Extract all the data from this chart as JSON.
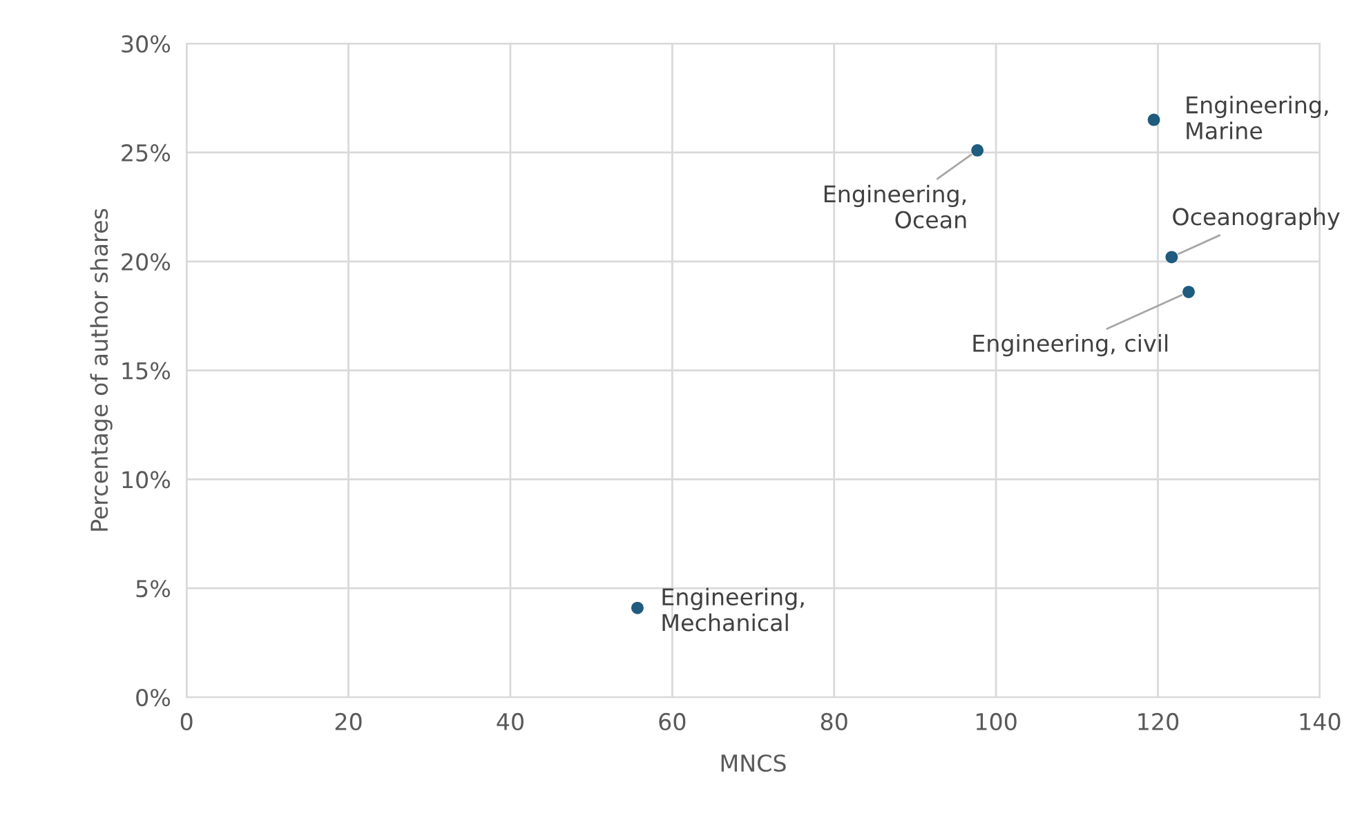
{
  "chart_data": {
    "type": "scatter",
    "xlabel": "MNCS",
    "ylabel": "Percentage of author shares",
    "x": [
      55.7,
      97.7,
      119.5,
      121.7,
      123.8
    ],
    "series": [
      {
        "color": "#1f5c7f",
        "values": [
          4.1,
          25.1,
          26.5,
          20.2,
          18.6
        ]
      }
    ],
    "annotations": [
      {
        "text": "Engineering,\nMechanical",
        "x": 55.7,
        "y": 4.1
      },
      {
        "text": "Engineering,\nOcean",
        "x": 97.7,
        "y": 25.1
      },
      {
        "text": "Engineering,\nMarine",
        "x": 119.5,
        "y": 26.5
      },
      {
        "text": "Oceanography",
        "x": 121.7,
        "y": 20.2
      },
      {
        "text": "Engineering, civil",
        "x": 123.8,
        "y": 18.6
      }
    ],
    "xlim": [
      0,
      140
    ],
    "xticks": [
      0,
      20,
      40,
      60,
      80,
      100,
      120,
      140
    ],
    "ylim": [
      0,
      30
    ],
    "yticks": [
      {
        "value": 0,
        "label": "0%"
      },
      {
        "value": 5,
        "label": "5%"
      },
      {
        "value": 10,
        "label": "10%"
      },
      {
        "value": 15,
        "label": "15%"
      },
      {
        "value": 20,
        "label": "20%"
      },
      {
        "value": 25,
        "label": "25%"
      },
      {
        "value": 30,
        "label": "30%"
      }
    ],
    "grid": true,
    "marker": "circle"
  }
}
